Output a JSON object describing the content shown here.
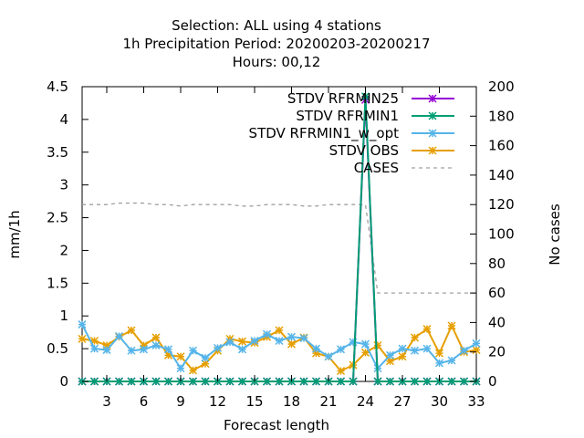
{
  "chart_data": {
    "type": "line",
    "title_lines": [
      "Selection: ALL using     4 stations",
      "1h Precipitation   Period: 20200203-20200217",
      "Hours:  00,12"
    ],
    "xlabel": "Forecast length",
    "ylabel": "mm/1h",
    "y2label": "No cases",
    "xlim": [
      1,
      33
    ],
    "ylim": [
      0,
      4.5
    ],
    "y2lim": [
      0,
      200
    ],
    "xticks": [
      3,
      6,
      9,
      12,
      15,
      18,
      21,
      24,
      27,
      30,
      33
    ],
    "yticks": [
      "0",
      "0.5",
      "1",
      "1.5",
      "2",
      "2.5",
      "3",
      "3.5",
      "4",
      "4.5"
    ],
    "y2ticks": [
      0,
      20,
      40,
      60,
      80,
      100,
      120,
      140,
      160,
      180,
      200
    ],
    "legend_position": "top-right",
    "x": [
      1,
      2,
      3,
      4,
      5,
      6,
      7,
      8,
      9,
      10,
      11,
      12,
      13,
      14,
      15,
      16,
      17,
      18,
      19,
      20,
      21,
      22,
      23,
      24,
      25,
      26,
      27,
      28,
      29,
      30,
      31,
      32,
      33
    ],
    "series": [
      {
        "name": "STDV RFRMIN25",
        "color": "#9400d3",
        "marker": "star",
        "axis": "y1",
        "values": [
          0,
          0,
          0,
          0,
          0,
          0,
          0,
          0,
          0,
          0,
          0,
          0,
          0,
          0,
          0,
          0,
          0,
          0,
          0,
          0,
          0,
          0,
          0,
          4.3,
          0,
          0,
          0,
          0,
          0,
          0,
          0,
          0,
          0
        ]
      },
      {
        "name": "STDV RFRMIN1",
        "color": "#009e73",
        "marker": "star",
        "axis": "y1",
        "values": [
          0,
          0,
          0,
          0,
          0,
          0,
          0,
          0,
          0,
          0,
          0,
          0,
          0,
          0,
          0,
          0,
          0,
          0,
          0,
          0,
          0,
          0,
          0,
          4.35,
          0,
          0,
          0,
          0,
          0,
          0,
          0,
          0,
          0
        ]
      },
      {
        "name": "STDV RFRMIN1_w_opt",
        "color": "#56b4e9",
        "marker": "star",
        "axis": "y1",
        "values": [
          0.87,
          0.5,
          0.48,
          0.69,
          0.47,
          0.49,
          0.55,
          0.49,
          0.2,
          0.47,
          0.36,
          0.51,
          0.6,
          0.49,
          0.62,
          0.72,
          0.62,
          0.68,
          0.66,
          0.5,
          0.38,
          0.49,
          0.6,
          0.57,
          0.2,
          0.4,
          0.5,
          0.47,
          0.5,
          0.28,
          0.32,
          0.47,
          0.58
        ]
      },
      {
        "name": "STDV OBS",
        "color": "#e69f00",
        "marker": "star",
        "axis": "y1",
        "values": [
          0.65,
          0.62,
          0.55,
          0.68,
          0.78,
          0.55,
          0.67,
          0.4,
          0.38,
          0.17,
          0.27,
          0.47,
          0.65,
          0.61,
          0.59,
          0.68,
          0.78,
          0.57,
          0.67,
          0.43,
          0.38,
          0.16,
          0.25,
          0.44,
          0.55,
          0.31,
          0.38,
          0.67,
          0.8,
          0.43,
          0.85,
          0.45,
          0.48
        ]
      },
      {
        "name": "CASES",
        "color": "#a0a0a0",
        "marker": "none",
        "dash": true,
        "axis": "y2",
        "values": [
          120,
          120,
          120,
          121,
          121,
          121,
          120,
          120,
          119,
          120,
          120,
          120,
          120,
          119,
          119,
          120,
          120,
          120,
          119,
          119,
          120,
          120,
          120,
          120,
          60,
          60,
          60,
          60,
          60,
          60,
          60,
          60,
          60
        ]
      }
    ]
  }
}
